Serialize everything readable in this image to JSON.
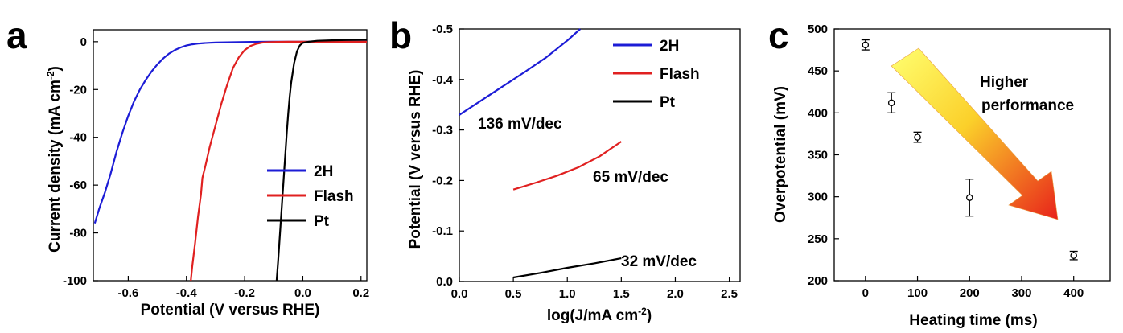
{
  "chart_data": [
    {
      "panel": "a",
      "type": "line",
      "xlabel": "Potential (V versus RHE)",
      "ylabel": "Current density (mA cm-2)",
      "xlim": [
        -0.72,
        0.22
      ],
      "ylim": [
        -100,
        5
      ],
      "xticks": [
        "-0.6",
        "-0.4",
        "-0.2",
        "0.0",
        "0.2"
      ],
      "xtick_values": [
        -0.6,
        -0.4,
        -0.2,
        0.0,
        0.2
      ],
      "yticks": [
        "0",
        "-20",
        "-40",
        "-60",
        "-80",
        "-100"
      ],
      "ytick_values": [
        0,
        -20,
        -40,
        -60,
        -80,
        -100
      ],
      "legend_position": "right",
      "series": [
        {
          "name": "2H",
          "color": "#1c1cd6",
          "x": [
            -0.715,
            -0.7,
            -0.68,
            -0.66,
            -0.64,
            -0.62,
            -0.6,
            -0.58,
            -0.56,
            -0.54,
            -0.52,
            -0.5,
            -0.48,
            -0.46,
            -0.44,
            -0.42,
            -0.4,
            -0.38,
            -0.36,
            -0.34,
            -0.32,
            -0.3,
            -0.28,
            -0.26,
            -0.24,
            -0.22,
            -0.2,
            -0.15,
            -0.1,
            0.0,
            0.1,
            0.22
          ],
          "y": [
            -76,
            -70,
            -63,
            -55,
            -46,
            -38,
            -31,
            -25,
            -20,
            -16,
            -12.5,
            -9.5,
            -7,
            -5,
            -3.5,
            -2.4,
            -1.6,
            -1.1,
            -0.8,
            -0.6,
            -0.45,
            -0.35,
            -0.3,
            -0.25,
            -0.2,
            -0.15,
            -0.1,
            -0.05,
            0,
            0,
            0,
            0
          ]
        },
        {
          "name": "Flash",
          "color": "#e02020",
          "x": [
            -0.385,
            -0.38,
            -0.37,
            -0.36,
            -0.35,
            -0.345,
            -0.335,
            -0.32,
            -0.3,
            -0.28,
            -0.26,
            -0.24,
            -0.22,
            -0.2,
            -0.18,
            -0.16,
            -0.14,
            -0.12,
            -0.1,
            -0.05,
            0.0,
            0.1,
            0.22
          ],
          "y": [
            -100,
            -94,
            -84,
            -73,
            -64,
            -57,
            -52,
            -44,
            -35,
            -26,
            -18,
            -11,
            -6.5,
            -3.5,
            -1.8,
            -0.9,
            -0.4,
            -0.2,
            -0.1,
            0,
            0,
            0,
            0
          ]
        },
        {
          "name": "Pt",
          "color": "#000000",
          "x": [
            -0.09,
            -0.085,
            -0.08,
            -0.075,
            -0.07,
            -0.065,
            -0.06,
            -0.055,
            -0.05,
            -0.045,
            -0.04,
            -0.03,
            -0.02,
            -0.01,
            0.0,
            0.02,
            0.05,
            0.1,
            0.15,
            0.22
          ],
          "y": [
            -100,
            -92,
            -83,
            -74,
            -65,
            -56,
            -47,
            -38,
            -30,
            -23,
            -17,
            -9,
            -4,
            -1.5,
            -0.5,
            0,
            0.4,
            0.6,
            0.7,
            0.8
          ]
        }
      ]
    },
    {
      "panel": "b",
      "type": "line",
      "xlabel": "log(J/mA cm-2)",
      "ylabel": "Potential (V versus RHE)",
      "xlim": [
        0.0,
        2.6
      ],
      "ylim": [
        0.0,
        -0.5
      ],
      "xticks": [
        "0.0",
        "0.5",
        "1.0",
        "1.5",
        "2.0",
        "2.5"
      ],
      "xtick_values": [
        0.0,
        0.5,
        1.0,
        1.5,
        2.0,
        2.5
      ],
      "yticks": [
        "0.0",
        "-0.1",
        "-0.2",
        "-0.3",
        "-0.4",
        "-0.5"
      ],
      "ytick_values": [
        0.0,
        -0.1,
        -0.2,
        -0.3,
        -0.4,
        -0.5
      ],
      "legend_position": "top-right",
      "series": [
        {
          "name": "2H",
          "color": "#1c1cd6",
          "x": [
            0.0,
            0.2,
            0.4,
            0.6,
            0.8,
            1.0,
            1.12
          ],
          "y": [
            -0.33,
            -0.358,
            -0.386,
            -0.414,
            -0.443,
            -0.477,
            -0.5
          ]
        },
        {
          "name": "Flash",
          "color": "#e02020",
          "x": [
            0.5,
            0.7,
            0.9,
            1.1,
            1.3,
            1.5
          ],
          "y": [
            -0.182,
            -0.195,
            -0.209,
            -0.226,
            -0.248,
            -0.277
          ]
        },
        {
          "name": "Pt",
          "color": "#000000",
          "x": [
            0.5,
            0.75,
            1.0,
            1.25,
            1.5
          ],
          "y": [
            -0.008,
            -0.017,
            -0.027,
            -0.036,
            -0.046
          ]
        }
      ],
      "annotations": [
        "136 mV/dec",
        "65 mV/dec",
        "32 mV/dec"
      ]
    },
    {
      "panel": "c",
      "type": "scatter",
      "xlabel": "Heating time (ms)",
      "ylabel": "Overpotential (mV)",
      "xlim": [
        -60,
        470
      ],
      "ylim": [
        200,
        500
      ],
      "xticks": [
        "0",
        "100",
        "200",
        "300",
        "400"
      ],
      "xtick_values": [
        0,
        100,
        200,
        300,
        400
      ],
      "yticks": [
        "200",
        "250",
        "300",
        "350",
        "400",
        "450",
        "500"
      ],
      "ytick_values": [
        200,
        250,
        300,
        350,
        400,
        450,
        500
      ],
      "x": [
        0,
        50,
        100,
        200,
        400
      ],
      "y": [
        481,
        412,
        371,
        299,
        230
      ],
      "error": [
        6,
        12,
        6,
        22,
        5
      ],
      "annotation": "Higher performance",
      "annotation_lines": [
        "Higher",
        "performance"
      ]
    }
  ],
  "panels": {
    "a": {
      "letter": "a",
      "legend": [
        "2H",
        "Flash",
        "Pt"
      ]
    },
    "b": {
      "letter": "b",
      "legend": [
        "2H",
        "Flash",
        "Pt"
      ]
    },
    "c": {
      "letter": "c"
    }
  },
  "labels": {
    "a_ylabel_main": "Current density (mA cm",
    "a_ylabel_sup": "-2",
    "a_ylabel_end": ")",
    "a_xlabel": "Potential (V versus RHE)",
    "b_ylabel": "Potential (V versus RHE)",
    "b_xlabel_main": "log(J/mA cm",
    "b_xlabel_sup": "-2",
    "b_xlabel_end": ")",
    "c_ylabel": "Overpotential (mV)",
    "c_xlabel": "Heating time (ms)"
  },
  "colors": {
    "blue": "#1c1cd6",
    "red": "#e02020",
    "black": "#000000",
    "arrow_start": "#ffff66",
    "arrow_end": "#e8221a"
  }
}
